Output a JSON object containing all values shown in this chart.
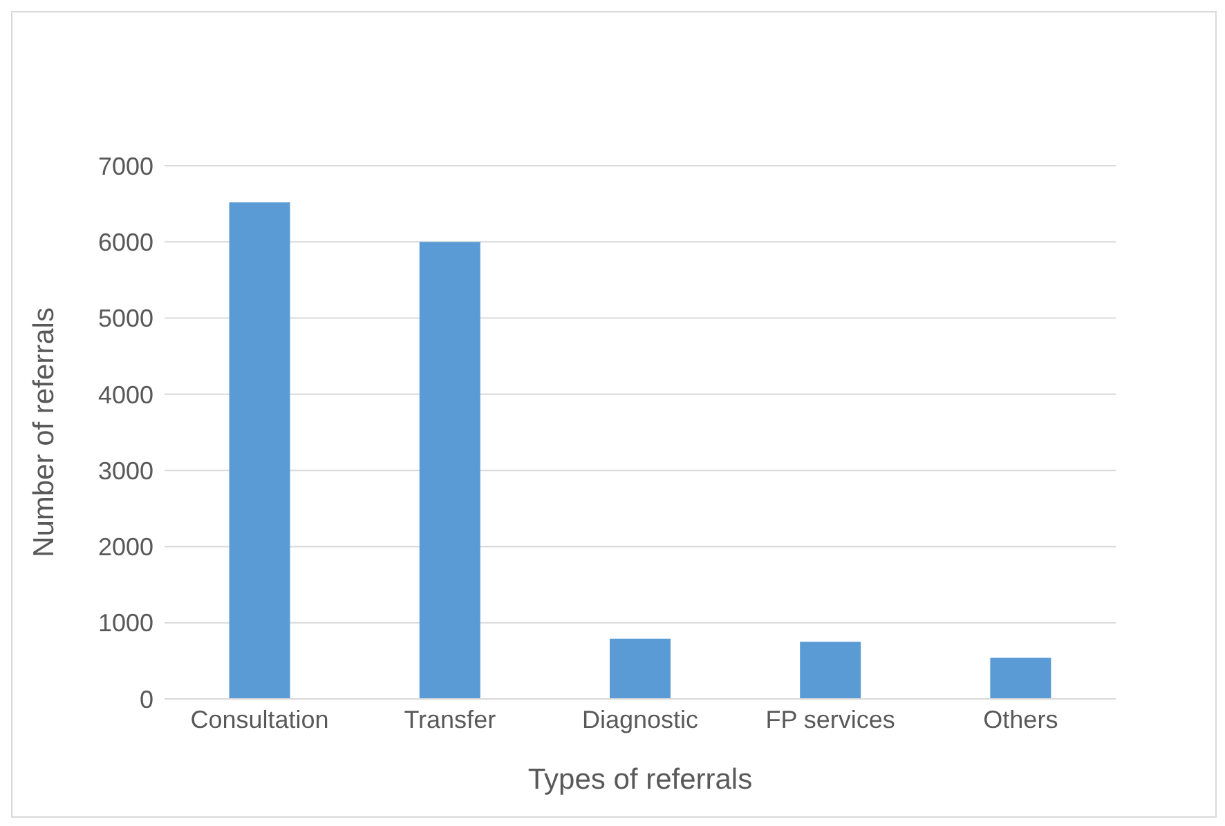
{
  "chart_data": {
    "type": "bar",
    "xlabel": "Types of referrals",
    "ylabel": "Number of referrals",
    "categories": [
      "Consultation",
      "Transfer",
      "Diagnostic",
      "FP services",
      "Others"
    ],
    "values": [
      6520,
      6000,
      790,
      750,
      540
    ],
    "color": "#5b9bd5",
    "ylim": [
      0,
      7000
    ],
    "yticks": [
      0,
      1000,
      2000,
      3000,
      4000,
      5000,
      6000,
      7000
    ],
    "grid": "y"
  }
}
